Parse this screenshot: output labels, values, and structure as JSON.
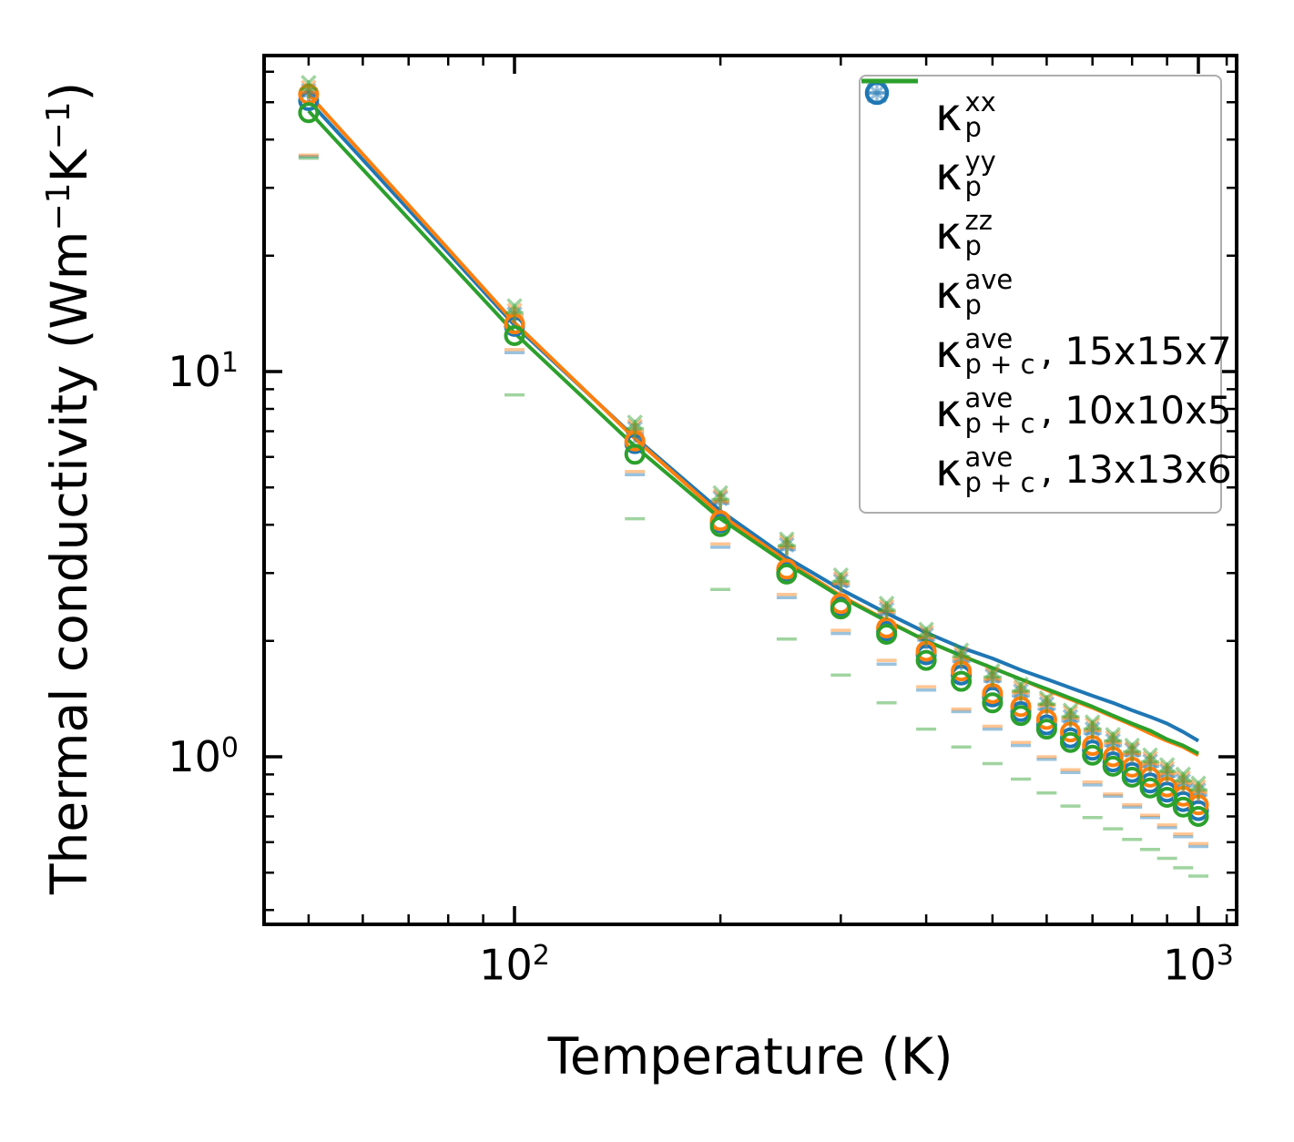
{
  "colors": {
    "blue": "#1f77b4",
    "orange": "#ff7f0e",
    "green": "#2ca02c",
    "axis": "#000000",
    "legend_border": "#adadad"
  },
  "axes": {
    "x": {
      "label": "Temperature (K)",
      "scale": "log",
      "range_K": [
        43,
        1127
      ],
      "major_tick_labels": [
        {
          "base": "10",
          "exp": "2"
        },
        {
          "base": "10",
          "exp": "3"
        }
      ],
      "major_ticks": [
        100,
        1000
      ],
      "minor_ticks": [
        50,
        60,
        70,
        80,
        90,
        200,
        300,
        400,
        500,
        600,
        700,
        800,
        900,
        1100
      ]
    },
    "y": {
      "label_part1": "Thermal conductivity (Wm",
      "label_sup1": "−1",
      "label_part2": "K",
      "label_sup2": "−1",
      "label_part3": ")",
      "scale": "log",
      "range": [
        0.367,
        66
      ],
      "major_tick_labels": [
        {
          "base": "10",
          "exp": "1"
        },
        {
          "base": "10",
          "exp": "0"
        }
      ],
      "major_ticks": [
        10,
        1
      ],
      "minor_ticks": [
        60,
        50,
        40,
        30,
        20,
        9,
        8,
        7,
        6,
        5,
        4,
        3,
        2,
        0.9,
        0.8,
        0.7,
        0.6,
        0.5,
        0.4
      ]
    }
  },
  "legend": {
    "entries": [
      {
        "marker": "plus",
        "color": "blue",
        "light": true,
        "kappa": "κ",
        "sup": "xx",
        "sub": "p",
        "suffix": ""
      },
      {
        "marker": "x",
        "color": "blue",
        "light": true,
        "kappa": "κ",
        "sup": "yy",
        "sub": "p",
        "suffix": ""
      },
      {
        "marker": "dash",
        "color": "blue",
        "light": true,
        "kappa": "κ",
        "sup": "zz",
        "sub": "p",
        "suffix": ""
      },
      {
        "marker": "circle",
        "color": "blue",
        "light": false,
        "kappa": "κ",
        "sup": "ave",
        "sub": "p",
        "suffix": ""
      },
      {
        "marker": "line",
        "color": "blue",
        "light": false,
        "kappa": "κ",
        "sup": "ave",
        "sub": "p + c",
        "suffix": ", 15x15x7"
      },
      {
        "marker": "line",
        "color": "orange",
        "light": false,
        "kappa": "κ",
        "sup": "ave",
        "sub": "p + c",
        "suffix": ", 10x10x5"
      },
      {
        "marker": "line",
        "color": "green",
        "light": false,
        "kappa": "κ",
        "sup": "ave",
        "sub": "p + c",
        "suffix": ", 13x13x6"
      }
    ]
  },
  "chart_data": {
    "type": "scatter",
    "title": "",
    "xlabel": "Temperature (K)",
    "ylabel": "Thermal conductivity (Wm−1K−1)",
    "x_scale": "log",
    "y_scale": "log",
    "xlim_K": [
      43,
      1127
    ],
    "ylim": [
      0.367,
      66
    ],
    "grid": false,
    "legend_position": "upper right",
    "temperatures_K": [
      50,
      100,
      150,
      200,
      250,
      300,
      350,
      400,
      450,
      500,
      550,
      600,
      650,
      700,
      750,
      800,
      850,
      900,
      950,
      1000
    ],
    "scatter": [
      {
        "name": "kp-xx-15x15x7",
        "marker": "plus",
        "color": "blue",
        "opacity": 0.45,
        "values": [
          52.0,
          13.7,
          6.9,
          4.55,
          3.45,
          2.78,
          2.34,
          2.01,
          1.77,
          1.57,
          1.44,
          1.33,
          1.24,
          1.15,
          1.07,
          1.01,
          0.945,
          0.89,
          0.84,
          0.795
        ]
      },
      {
        "name": "kp-yy-15x15x7",
        "marker": "x",
        "color": "blue",
        "opacity": 0.45,
        "values": [
          53.6,
          14.1,
          7.11,
          4.69,
          3.55,
          2.86,
          2.41,
          2.07,
          1.82,
          1.62,
          1.48,
          1.37,
          1.27,
          1.18,
          1.1,
          1.04,
          0.973,
          0.917,
          0.865,
          0.819
        ]
      },
      {
        "name": "kp-zz-15x15x7",
        "marker": "dash",
        "color": "blue",
        "opacity": 0.45,
        "values": [
          36.2,
          11.2,
          5.4,
          3.5,
          2.59,
          2.09,
          1.74,
          1.49,
          1.31,
          1.18,
          1.07,
          0.985,
          0.91,
          0.845,
          0.79,
          0.74,
          0.695,
          0.655,
          0.62,
          0.585
        ]
      },
      {
        "name": "kp-ave-15x15x7",
        "marker": "circle",
        "color": "blue",
        "opacity": 1,
        "values": [
          50.5,
          13.1,
          6.5,
          4.05,
          3.02,
          2.46,
          2.12,
          1.84,
          1.63,
          1.43,
          1.31,
          1.21,
          1.12,
          1.04,
          0.97,
          0.91,
          0.855,
          0.81,
          0.765,
          0.725
        ]
      },
      {
        "name": "kp-xx-10x10x5",
        "marker": "plus",
        "color": "orange",
        "opacity": 0.45,
        "values": [
          53.0,
          14.0,
          7.0,
          4.6,
          3.5,
          2.82,
          2.38,
          2.04,
          1.8,
          1.59,
          1.47,
          1.36,
          1.26,
          1.17,
          1.09,
          1.02,
          0.96,
          0.905,
          0.855,
          0.81
        ]
      },
      {
        "name": "kp-yy-10x10x5",
        "marker": "x",
        "color": "orange",
        "opacity": 0.45,
        "values": [
          54.6,
          14.4,
          7.21,
          4.74,
          3.61,
          2.9,
          2.45,
          2.1,
          1.85,
          1.64,
          1.51,
          1.4,
          1.3,
          1.21,
          1.12,
          1.05,
          0.989,
          0.932,
          0.881,
          0.834
        ]
      },
      {
        "name": "kp-zz-10x10x5",
        "marker": "dash",
        "color": "orange",
        "opacity": 0.45,
        "values": [
          36.5,
          11.4,
          5.5,
          3.57,
          2.64,
          2.13,
          1.78,
          1.52,
          1.33,
          1.2,
          1.09,
          1.0,
          0.925,
          0.86,
          0.8,
          0.75,
          0.705,
          0.665,
          0.63,
          0.595
        ]
      },
      {
        "name": "kp-ave-10x10x5",
        "marker": "circle",
        "color": "orange",
        "opacity": 1,
        "values": [
          52.5,
          13.3,
          6.6,
          4.1,
          3.07,
          2.5,
          2.16,
          1.88,
          1.67,
          1.46,
          1.35,
          1.25,
          1.16,
          1.07,
          1.0,
          0.94,
          0.885,
          0.835,
          0.79,
          0.75
        ]
      },
      {
        "name": "kp-xx-13x13x6",
        "marker": "plus",
        "color": "green",
        "opacity": 0.45,
        "values": [
          54.0,
          14.2,
          7.1,
          4.65,
          3.53,
          2.85,
          2.4,
          2.06,
          1.82,
          1.61,
          1.48,
          1.37,
          1.27,
          1.18,
          1.1,
          1.03,
          0.97,
          0.915,
          0.865,
          0.82
        ]
      },
      {
        "name": "kp-yy-13x13x6",
        "marker": "x",
        "color": "green",
        "opacity": 0.45,
        "values": [
          56.2,
          14.8,
          7.38,
          4.84,
          3.67,
          2.96,
          2.5,
          2.14,
          1.89,
          1.67,
          1.54,
          1.42,
          1.32,
          1.23,
          1.14,
          1.07,
          1.01,
          0.952,
          0.9,
          0.853
        ]
      },
      {
        "name": "kp-zz-13x13x6",
        "marker": "dash",
        "color": "green",
        "opacity": 0.45,
        "values": [
          35.8,
          8.7,
          4.15,
          2.72,
          2.02,
          1.63,
          1.38,
          1.18,
          1.06,
          0.96,
          0.875,
          0.805,
          0.745,
          0.695,
          0.65,
          0.61,
          0.575,
          0.545,
          0.515,
          0.49
        ]
      },
      {
        "name": "kp-ave-13x13x6",
        "marker": "circle",
        "color": "green",
        "opacity": 1,
        "values": [
          47.0,
          12.4,
          6.1,
          3.96,
          2.98,
          2.42,
          2.08,
          1.78,
          1.57,
          1.38,
          1.28,
          1.18,
          1.09,
          1.01,
          0.945,
          0.885,
          0.83,
          0.785,
          0.74,
          0.7
        ]
      }
    ],
    "lines": [
      {
        "name": "kp+c-ave-15x15x7",
        "color": "blue",
        "values": [
          50.5,
          13.2,
          6.75,
          4.35,
          3.29,
          2.72,
          2.36,
          2.1,
          1.92,
          1.8,
          1.68,
          1.59,
          1.51,
          1.44,
          1.38,
          1.32,
          1.27,
          1.22,
          1.16,
          1.1
        ]
      },
      {
        "name": "kp+c-ave-10x10x5",
        "color": "orange",
        "values": [
          52.5,
          13.4,
          6.7,
          4.25,
          3.22,
          2.62,
          2.26,
          2.0,
          1.83,
          1.7,
          1.59,
          1.49,
          1.41,
          1.34,
          1.27,
          1.21,
          1.15,
          1.1,
          1.06,
          1.01
        ]
      },
      {
        "name": "kp+c-ave-13x13x6",
        "color": "green",
        "values": [
          47.5,
          12.6,
          6.4,
          4.15,
          3.17,
          2.6,
          2.25,
          2.0,
          1.83,
          1.7,
          1.59,
          1.5,
          1.42,
          1.35,
          1.28,
          1.22,
          1.17,
          1.11,
          1.07,
          1.02
        ]
      }
    ]
  }
}
